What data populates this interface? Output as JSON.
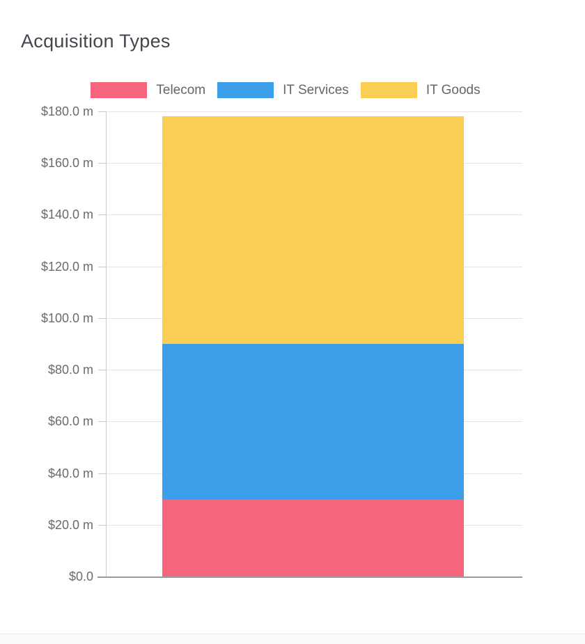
{
  "chart": {
    "title": "Acquisition Types"
  },
  "chart_data": {
    "type": "bar",
    "stacked": true,
    "title": "Acquisition Types",
    "categories": [
      ""
    ],
    "series": [
      {
        "name": "Telecom",
        "color": "#F6647E",
        "values": [
          30
        ]
      },
      {
        "name": "IT Services",
        "color": "#3B9EE8",
        "values": [
          60
        ]
      },
      {
        "name": "IT Goods",
        "color": "#FACD55",
        "values": [
          88
        ]
      }
    ],
    "total": 178,
    "ylim": [
      0,
      180
    ],
    "y_ticks": [
      {
        "value": 180,
        "label": "$180.0 m"
      },
      {
        "value": 160,
        "label": "$160.0 m"
      },
      {
        "value": 140,
        "label": "$140.0 m"
      },
      {
        "value": 120,
        "label": "$120.0 m"
      },
      {
        "value": 100,
        "label": "$100.0 m"
      },
      {
        "value": 80,
        "label": "$80.0 m"
      },
      {
        "value": 60,
        "label": "$60.0 m"
      },
      {
        "value": 40,
        "label": "$40.0 m"
      },
      {
        "value": 20,
        "label": "$20.0 m"
      },
      {
        "value": 0,
        "label": "$0.0"
      }
    ],
    "legend_position": "top",
    "grid": true,
    "colors": {
      "telecom": "#F6647E",
      "it_services": "#3B9EE8",
      "it_goods": "#FACD55"
    }
  }
}
